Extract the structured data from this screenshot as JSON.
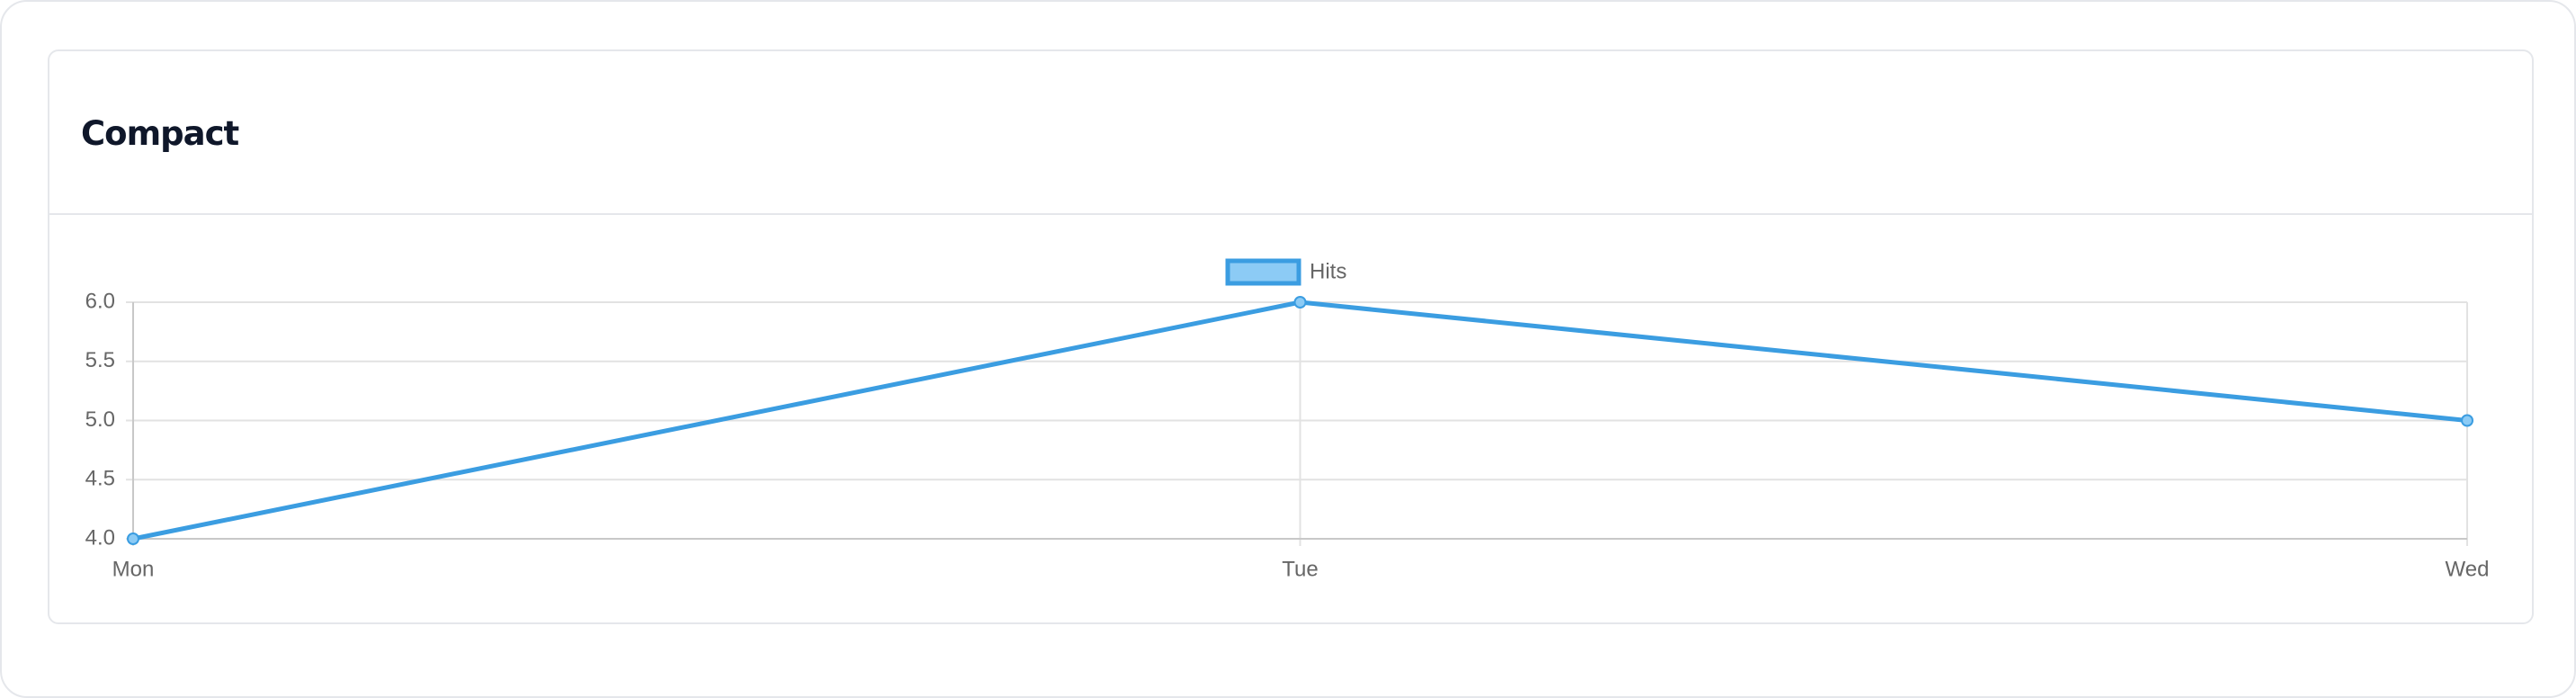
{
  "chart_data": {
    "type": "line",
    "title": "Compact",
    "categories": [
      "Mon",
      "Tue",
      "Wed"
    ],
    "series": [
      {
        "name": "Hits",
        "color": "#3b9de1",
        "values": [
          4,
          6,
          5
        ]
      }
    ],
    "ylim": [
      4,
      6
    ],
    "yticks": [
      {
        "value": 4,
        "label": "4.0"
      },
      {
        "value": 4.5,
        "label": "4.5"
      },
      {
        "value": 5,
        "label": "5.0"
      },
      {
        "value": 5.5,
        "label": "5.5"
      },
      {
        "value": 6,
        "label": "6.0"
      }
    ],
    "grid": true,
    "legend": "top"
  }
}
